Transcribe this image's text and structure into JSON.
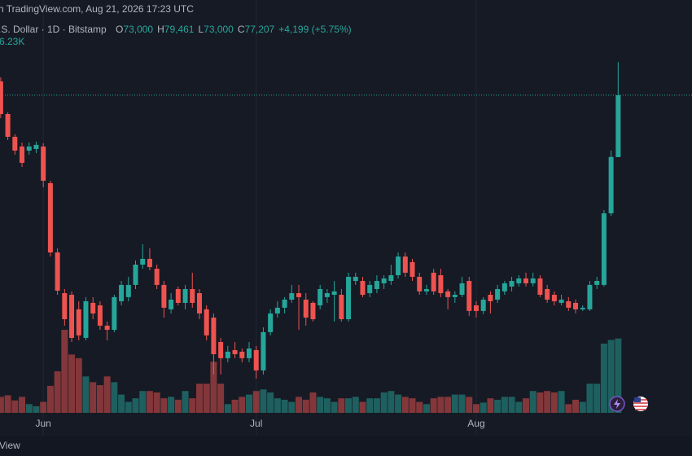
{
  "header": {
    "source": "n TradingView.com, Aug 21, 2026 17:23 UTC",
    "symbol": ".S. Dollar · 1D · Bitstamp",
    "legend_items": [
      {
        "key": "O",
        "value": "73,000"
      },
      {
        "key": "H",
        "value": "79,461"
      },
      {
        "key": "L",
        "value": "73,000"
      },
      {
        "key": "C",
        "value": "77,207"
      }
    ],
    "change": "+4,199 (+5.75%)",
    "volume_label": "6.23K"
  },
  "footer": {
    "brand": "View"
  },
  "chart_data": {
    "type": "candlestick",
    "up_color": "#26a69a",
    "down_color": "#ef5350",
    "xlim": [
      -0.1,
      97.4
    ],
    "ylim": [
      52680,
      83680
    ],
    "xticks": [
      {
        "value": 6,
        "label": "Jun"
      },
      {
        "value": 36,
        "label": "Jul"
      },
      {
        "value": 67,
        "label": "Aug"
      }
    ],
    "series": [
      {
        "open": [
          78150,
          75930,
          74380,
          73720,
          73440,
          73550,
          73720,
          71230,
          66520,
          63750,
          63640,
          62650,
          60710,
          63090,
          62920,
          61540,
          61260,
          63200,
          63480,
          64310,
          65690,
          66080,
          65410,
          64310,
          62650,
          64030,
          63090,
          64030,
          63750,
          62650,
          62090,
          60430,
          59330,
          59880,
          59770,
          59330,
          59880,
          58500,
          61100,
          62370,
          62760,
          63310,
          63750,
          63310,
          63090,
          62920,
          63480,
          63640,
          63640,
          61980,
          64580,
          64580,
          63750,
          64030,
          64420,
          64580,
          64970,
          66240,
          65860,
          64860,
          63870,
          65140,
          64970,
          63870,
          63480,
          63640,
          64580,
          62920,
          62540,
          63640,
          63310,
          63870,
          64200,
          64420,
          64750,
          64420,
          64750,
          64030,
          63640,
          63090,
          63200,
          63090,
          62650,
          62650,
          64310,
          64310,
          69180,
          73000
        ],
        "high": [
          78420,
          76040,
          74550,
          73990,
          73990,
          74050,
          73940,
          71390,
          66800,
          64030,
          63870,
          63200,
          63480,
          63480,
          63200,
          61820,
          63640,
          64580,
          64860,
          65970,
          67080,
          66800,
          65690,
          64580,
          63750,
          64200,
          64310,
          65140,
          64030,
          62920,
          62370,
          60710,
          60160,
          60430,
          59990,
          60430,
          60160,
          61430,
          62650,
          63200,
          63480,
          64310,
          64310,
          63750,
          63200,
          64310,
          64030,
          64580,
          64030,
          65140,
          65140,
          64860,
          64580,
          64970,
          64970,
          65690,
          66520,
          66520,
          66080,
          65140,
          64310,
          65410,
          65410,
          64030,
          63870,
          64860,
          64860,
          63200,
          63480,
          63870,
          64310,
          64580,
          64860,
          64970,
          65140,
          65140,
          64970,
          64310,
          63870,
          63640,
          63480,
          63310,
          62920,
          64580,
          64860,
          69400,
          73440,
          79461
        ],
        "low": [
          75650,
          74160,
          73160,
          72330,
          73160,
          73270,
          70950,
          66240,
          63640,
          61540,
          60430,
          60540,
          60540,
          61980,
          61260,
          60540,
          61100,
          62920,
          63200,
          64030,
          65410,
          65300,
          64030,
          62090,
          62370,
          62920,
          62650,
          62760,
          61980,
          60540,
          58220,
          58220,
          59050,
          59330,
          59050,
          59050,
          57940,
          58220,
          60880,
          62090,
          62370,
          63090,
          61260,
          61540,
          61820,
          62650,
          63090,
          61820,
          61820,
          61820,
          64310,
          63480,
          63480,
          63750,
          64030,
          64310,
          64750,
          64860,
          64580,
          63640,
          63640,
          63640,
          63480,
          62650,
          63090,
          63480,
          62210,
          62090,
          62320,
          62370,
          63090,
          63640,
          63870,
          64200,
          64200,
          64200,
          63480,
          63090,
          62920,
          62920,
          62540,
          62370,
          62540,
          62540,
          64030,
          64200,
          69010,
          73000
        ],
        "close": [
          75930,
          74380,
          73440,
          72610,
          73720,
          73830,
          71390,
          66520,
          63920,
          61980,
          60710,
          60880,
          63200,
          62370,
          61540,
          61260,
          63480,
          64310,
          64310,
          65690,
          66080,
          65520,
          64310,
          62760,
          63310,
          63090,
          64030,
          63090,
          62370,
          60880,
          59600,
          59330,
          59770,
          59600,
          59330,
          59990,
          58500,
          61100,
          62370,
          62760,
          63310,
          63750,
          63480,
          62090,
          61980,
          64030,
          63750,
          63870,
          61980,
          64860,
          64860,
          63640,
          64310,
          64580,
          64750,
          64970,
          66240,
          65140,
          64860,
          63870,
          64030,
          63870,
          63750,
          63480,
          63640,
          64420,
          62540,
          62540,
          63310,
          63200,
          64030,
          64420,
          64580,
          64750,
          64420,
          64750,
          63640,
          63310,
          63200,
          63310,
          62760,
          62650,
          62760,
          64310,
          64580,
          69180,
          73010,
          77207
        ],
        "volume": [
          1340,
          1470,
          1040,
          1340,
          730,
          550,
          920,
          2260,
          3480,
          6960,
          4890,
          4580,
          3050,
          2570,
          2320,
          3050,
          2570,
          1530,
          920,
          1220,
          1830,
          1830,
          1710,
          1220,
          1340,
          1100,
          1830,
          1220,
          2440,
          2440,
          4280,
          2440,
          730,
          1100,
          1340,
          1530,
          1830,
          1960,
          1710,
          1220,
          1100,
          920,
          1340,
          1100,
          1710,
          1340,
          1220,
          920,
          1220,
          1220,
          1340,
          920,
          1220,
          1220,
          1710,
          1830,
          1530,
          1340,
          1220,
          920,
          730,
          1220,
          1340,
          1340,
          1530,
          1530,
          1340,
          730,
          860,
          1220,
          1100,
          1340,
          1340,
          920,
          1220,
          1830,
          1710,
          1830,
          1710,
          1830,
          730,
          1100,
          920,
          2440,
          2440,
          5800,
          6110,
          6230
        ]
      }
    ]
  }
}
